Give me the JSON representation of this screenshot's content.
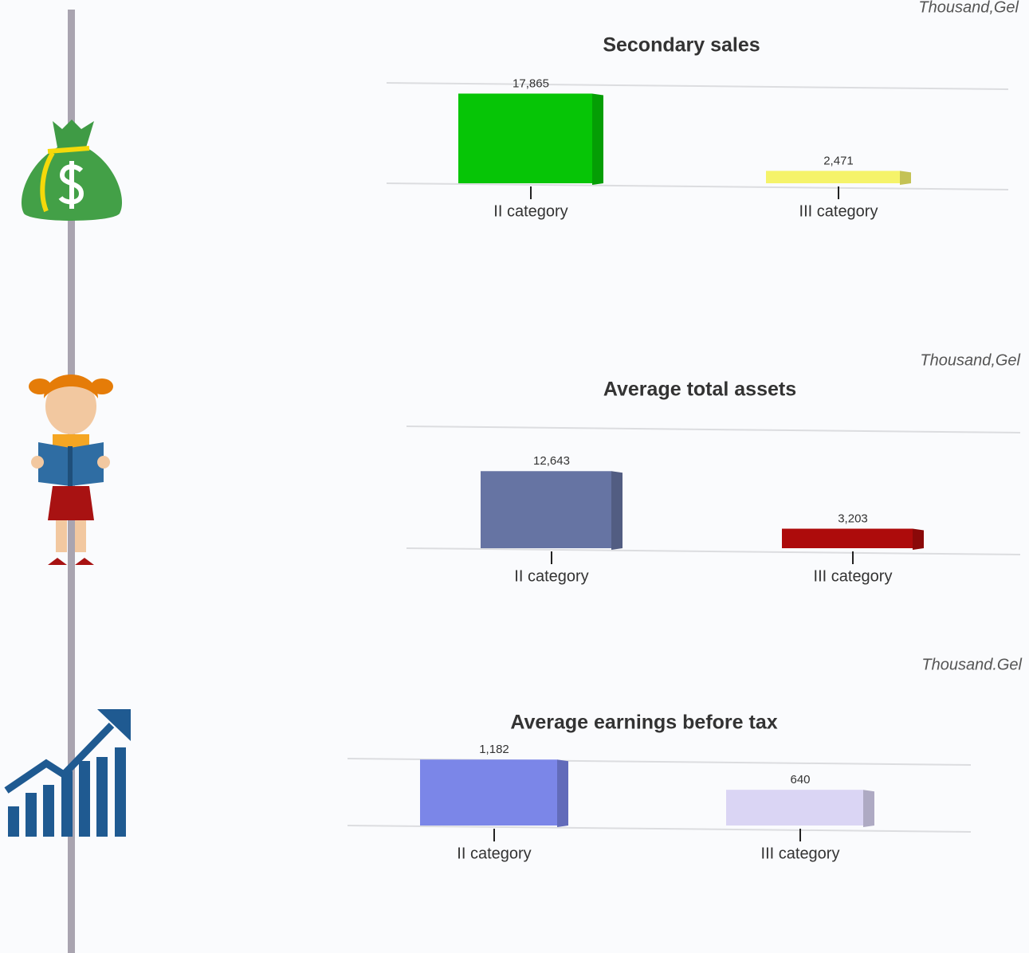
{
  "chart_data": [
    {
      "type": "bar",
      "title": "Secondary sales",
      "unit_note": "Thousand,Gel",
      "categories": [
        "II category",
        "III category"
      ],
      "values": [
        17865,
        2471
      ],
      "value_labels": [
        "17,865",
        "2,471"
      ],
      "colors": [
        "#06c506",
        "#f5f36a"
      ],
      "ylim": [
        0,
        20000
      ],
      "grid": true
    },
    {
      "type": "bar",
      "title": "Average total assets",
      "unit_note": "Thousand,Gel",
      "categories": [
        "II category",
        "III category"
      ],
      "values": [
        12643,
        3203
      ],
      "value_labels": [
        "12,643",
        "3,203"
      ],
      "colors": [
        "#6674a3",
        "#ad0b0b"
      ],
      "ylim": [
        0,
        20000
      ],
      "grid": true
    },
    {
      "type": "bar",
      "title": "Average earnings before tax",
      "unit_note": "Thousand.Gel",
      "categories": [
        "II category",
        "III category"
      ],
      "values": [
        1182,
        640
      ],
      "value_labels": [
        "1,182",
        "640"
      ],
      "colors": [
        "#7b86e8",
        "#dad5f4"
      ],
      "ylim": [
        0,
        1200
      ],
      "grid": true
    }
  ]
}
